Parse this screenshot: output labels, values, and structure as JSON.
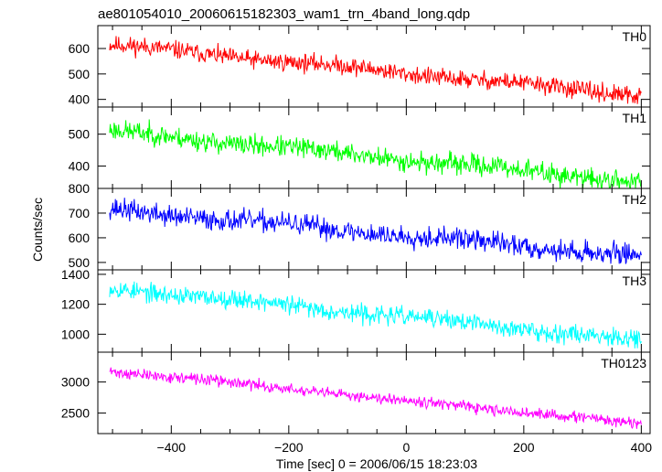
{
  "chart_data": {
    "type": "line",
    "title": "ae801054010_20060615182303_wam1_trn_4band_long.qdp",
    "xlabel": "Time [sec] 0 = 2006/06/15 18:23:03",
    "ylabel": "Counts/sec",
    "xlim": [
      -525,
      415
    ],
    "xticks": [
      -400,
      -200,
      0,
      200,
      400
    ],
    "x_range": [
      -505,
      400
    ],
    "grid": false,
    "panels": [
      {
        "name": "TH0",
        "color": "#ff0000",
        "ylim": [
          370,
          690
        ],
        "yticks": [
          400,
          500,
          600
        ],
        "trend_start": 615,
        "trend_end": 415,
        "noise": 22,
        "seed": 11
      },
      {
        "name": "TH1",
        "color": "#00ff00",
        "ylim": [
          330,
          585
        ],
        "yticks": [
          400,
          500
        ],
        "trend_start": 510,
        "trend_end": 350,
        "noise": 20,
        "seed": 23
      },
      {
        "name": "TH2",
        "color": "#0000ff",
        "ylim": [
          470,
          800
        ],
        "yticks": [
          500,
          600,
          700,
          800
        ],
        "trend_start": 715,
        "trend_end": 525,
        "noise": 27,
        "seed": 37
      },
      {
        "name": "TH3",
        "color": "#00ffff",
        "ylim": [
          880,
          1430
        ],
        "yticks": [
          1000,
          1200,
          1400
        ],
        "trend_start": 1310,
        "trend_end": 960,
        "noise": 38,
        "seed": 53
      },
      {
        "name": "TH0123",
        "color": "#ff00ff",
        "ylim": [
          2170,
          3480
        ],
        "yticks": [
          2500,
          3000
        ],
        "trend_start": 3180,
        "trend_end": 2320,
        "noise": 55,
        "seed": 71
      }
    ]
  }
}
